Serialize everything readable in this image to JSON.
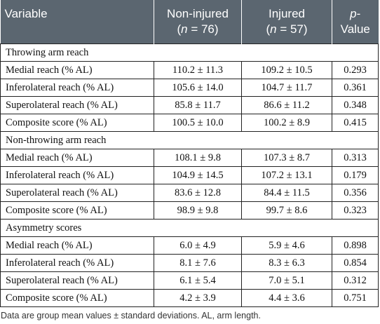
{
  "table": {
    "headers": {
      "variable": "Variable",
      "noninjured_label": "Non-injured",
      "noninjured_n": "(n = 76)",
      "injured_label": "Injured",
      "injured_n": "(n = 57)",
      "p_value": "p-Value"
    },
    "sections": [
      {
        "title": "Throwing arm reach",
        "rows": [
          {
            "variable": "Medial reach (% AL)",
            "noninjured": "110.2 ± 11.3",
            "injured": "109.2 ± 10.5",
            "p": "0.293"
          },
          {
            "variable": "Inferolateral reach (% AL)",
            "noninjured": "105.6 ± 14.0",
            "injured": "104.7 ± 11.7",
            "p": "0.361"
          },
          {
            "variable": "Superolateral reach (% AL)",
            "noninjured": "85.8 ± 11.7",
            "injured": "86.6 ± 11.2",
            "p": "0.348"
          },
          {
            "variable": "Composite score (% AL)",
            "noninjured": "100.5 ± 10.0",
            "injured": "100.2 ± 8.9",
            "p": "0.415"
          }
        ]
      },
      {
        "title": "Non-throwing arm reach",
        "rows": [
          {
            "variable": "Medial reach (% AL)",
            "noninjured": "108.1 ± 9.8",
            "injured": "107.3 ± 8.7",
            "p": "0.313"
          },
          {
            "variable": "Inferolateral reach (% AL)",
            "noninjured": "104.9 ± 14.5",
            "injured": "107.2 ± 13.1",
            "p": "0.179"
          },
          {
            "variable": "Superolateral reach (% AL)",
            "noninjured": "83.6 ± 12.8",
            "injured": "84.4 ± 11.5",
            "p": "0.356"
          },
          {
            "variable": "Composite score (% AL)",
            "noninjured": "98.9 ± 9.8",
            "injured": "99.7 ± 8.6",
            "p": "0.323"
          }
        ]
      },
      {
        "title": "Asymmetry scores",
        "rows": [
          {
            "variable": "Medial reach (% AL)",
            "noninjured": "6.0 ± 4.9",
            "injured": "5.9 ± 4.6",
            "p": "0.898"
          },
          {
            "variable": "Inferolateral reach (% AL)",
            "noninjured": "8.1 ± 7.6",
            "injured": "8.3 ± 6.3",
            "p": "0.854"
          },
          {
            "variable": "Superolateral reach (% AL)",
            "noninjured": "6.1 ± 5.4",
            "injured": "7.0 ± 5.1",
            "p": "0.312"
          },
          {
            "variable": "Composite score (% AL)",
            "noninjured": "4.2 ± 3.9",
            "injured": "4.4 ± 3.6",
            "p": "0.751"
          }
        ]
      }
    ]
  },
  "footnote": "Data are group mean values ± standard deviations. AL, arm length.",
  "colors": {
    "header_bg": "#5b6670",
    "header_text": "#ffffff",
    "border": "#222222"
  }
}
